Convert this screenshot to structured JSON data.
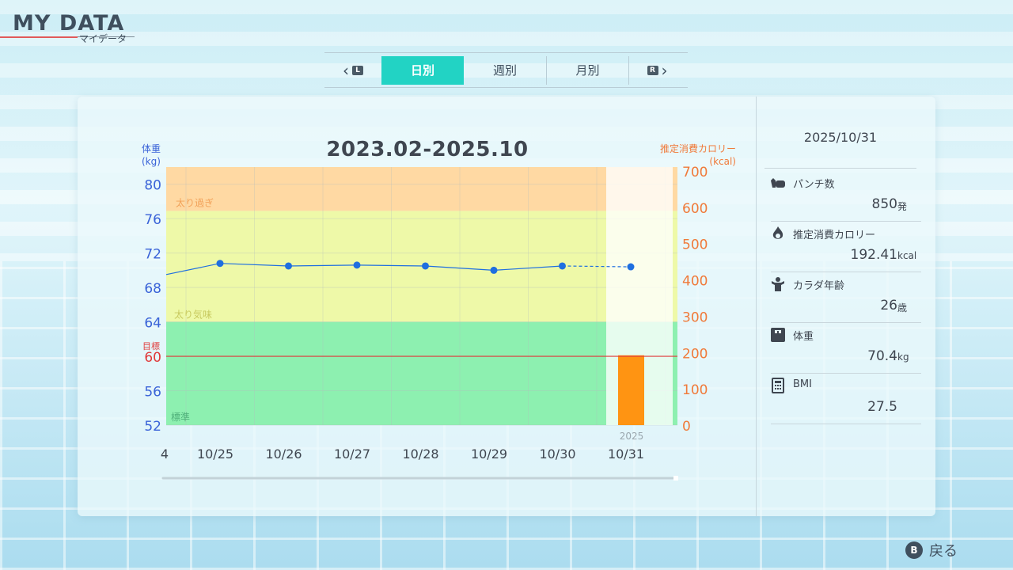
{
  "header": {
    "title": "MY DATA",
    "subtitle": "マイデータ"
  },
  "tabs": {
    "prev_button": "L",
    "next_button": "R",
    "items": [
      {
        "label": "日別",
        "active": true
      },
      {
        "label": "週別",
        "active": false
      },
      {
        "label": "月別",
        "active": false
      }
    ]
  },
  "chart": {
    "title": "2023.02-2025.10",
    "left_axis_title": [
      "体重",
      "(kg)"
    ],
    "right_axis_title": [
      "推定消費カロリー",
      "(kcal)"
    ],
    "zones": {
      "overweight": "太り過ぎ",
      "slightly_overweight": "太り気味",
      "normal": "標準"
    },
    "target_label": "目標",
    "year_label": "2025",
    "partial_left_tick": "4"
  },
  "chart_data": {
    "type": "line",
    "x": [
      "10/25",
      "10/26",
      "10/27",
      "10/28",
      "10/29",
      "10/30",
      "10/31"
    ],
    "series": [
      {
        "values": [
          70.8,
          70.5,
          70.6,
          70.5,
          70.0,
          70.5,
          70.4
        ]
      },
      {
        "values": [
          null,
          null,
          null,
          null,
          null,
          null,
          192.41
        ]
      }
    ],
    "left_axis": {
      "ticks": [
        80,
        76,
        72,
        68,
        64,
        60,
        56,
        52
      ],
      "range": [
        52,
        82
      ]
    },
    "right_axis": {
      "ticks": [
        700,
        600,
        500,
        400,
        300,
        200,
        100,
        0
      ],
      "range": [
        0,
        711
      ]
    },
    "target_weight": 60,
    "zone_bounds": {
      "normal_max": 64,
      "slightly_overweight_max": 76.9
    },
    "previous_day_weight": 69.5,
    "colors": {
      "line": "#1f6fe0",
      "bar": "#ff9412",
      "target": "#e03a3a",
      "overweight": "#ffd9a3",
      "slightly_overweight": "#eef9a8",
      "normal": "#8df0b0"
    }
  },
  "side": {
    "date": "2025/10/31",
    "stats": [
      {
        "label": "パンチ数",
        "value": "850",
        "unit": "発",
        "icon": "punch-icon"
      },
      {
        "label": "推定消費カロリー",
        "value": "192.41",
        "unit": "kcal",
        "icon": "flame-icon"
      },
      {
        "label": "カラダ年齢",
        "value": "26",
        "unit": "歳",
        "icon": "body-icon"
      },
      {
        "label": "体重",
        "value": "70.4",
        "unit": "kg",
        "icon": "scale-icon"
      },
      {
        "label": "BMI",
        "value": "27.5",
        "unit": "",
        "icon": "calculator-icon"
      }
    ]
  },
  "footer": {
    "back_button": "B",
    "back_label": "戻る"
  }
}
